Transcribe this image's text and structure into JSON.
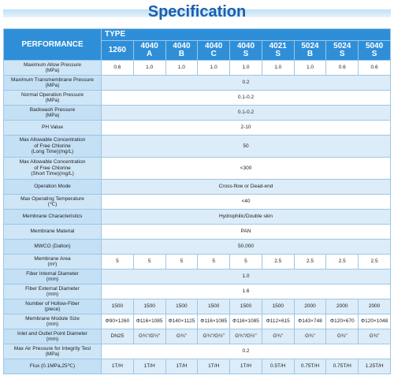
{
  "header": {
    "title": "Specification"
  },
  "table": {
    "corner": "PERFORMANCE",
    "group": "TYPE",
    "models": [
      "1260",
      "4040\nA",
      "4040\nB",
      "4040\nC",
      "4040\nS",
      "4021\nS",
      "5024\nB",
      "5024\nS",
      "5040\nS"
    ],
    "rows": [
      {
        "label": "Maximum Allow Pressure\n(MPa)",
        "values": [
          "0.6",
          "1.0",
          "1.0",
          "1.0",
          "1.0",
          "1.0",
          "1.0",
          "0.6",
          "0.6"
        ]
      },
      {
        "label": "Maximum Transmembrane Pressure\n(MPa)",
        "value": "0.2"
      },
      {
        "label": "Normal Operation Pressure\n(MPa)",
        "value": "0.1-0.2"
      },
      {
        "label": "Backwash Pressure\n(MPa)",
        "value": "0.1-0.2"
      },
      {
        "label": "PH Value",
        "value": "2-10"
      },
      {
        "label": "Max Allowable Concentration\nof Free Chlorine\n(Long Time)(mg/L)",
        "value": "50"
      },
      {
        "label": "Max Allowable Concentration\nof Free Chlorine\n(Short Time)(mg/L)",
        "value": "<300"
      },
      {
        "label": "Operation Mode",
        "value": "Cross-flow or Dead-end"
      },
      {
        "label": "Max Operating Temperature\n(℃)",
        "value": "<40"
      },
      {
        "label": "Membrane Characteristics",
        "value": "Hydrophilic/Double skin"
      },
      {
        "label": "Membrane Material",
        "value": "PAN"
      },
      {
        "label": "MWCO (Dalton)",
        "value": "50,000"
      },
      {
        "label": "Membrane Area\n(m²)",
        "values": [
          "5",
          "5",
          "5",
          "5",
          "5",
          "2.5",
          "2.5",
          "2.5",
          "2.5"
        ]
      },
      {
        "label": "Fiber Internal Diameter\n(mm)",
        "value": "1.0"
      },
      {
        "label": "Fiber External Diameter\n(mm)",
        "value": "1.6"
      },
      {
        "label": "Number of Hollow-Fiber\n(piece)",
        "values": [
          "1500",
          "1500",
          "1500",
          "1500",
          "1500",
          "1500",
          "2000",
          "2000",
          "2000"
        ]
      },
      {
        "label": "Membrane Module Size\n(mm)",
        "values": [
          "Φ90×1260",
          "Φ116×1085",
          "Φ140×1125",
          "Φ116×1085",
          "Φ116×1085",
          "Φ112×615",
          "Φ143×748",
          "Φ120×670",
          "Φ120×1048"
        ]
      },
      {
        "label": "Inlet and Outlet Point Diameter\n(mm)",
        "values": [
          "DN25",
          "G¾\"/G½\"",
          "G¾\"",
          "G¾\"/G½\"",
          "G¾\"/G½\"",
          "G¾\"",
          "G¾\"",
          "G¾\"",
          "G¾\""
        ]
      },
      {
        "label": "Max Air Pressure for Integrity Test\n(MPa)",
        "value": "0.2"
      },
      {
        "label": "Flux (0.1MPa,25℃)",
        "values": [
          "1T/H",
          "1T/H",
          "1T/H",
          "1T/H",
          "1T/H",
          "0.5T/H",
          "0.75T/H",
          "0.75T/H",
          "1.25T/H"
        ]
      }
    ]
  }
}
